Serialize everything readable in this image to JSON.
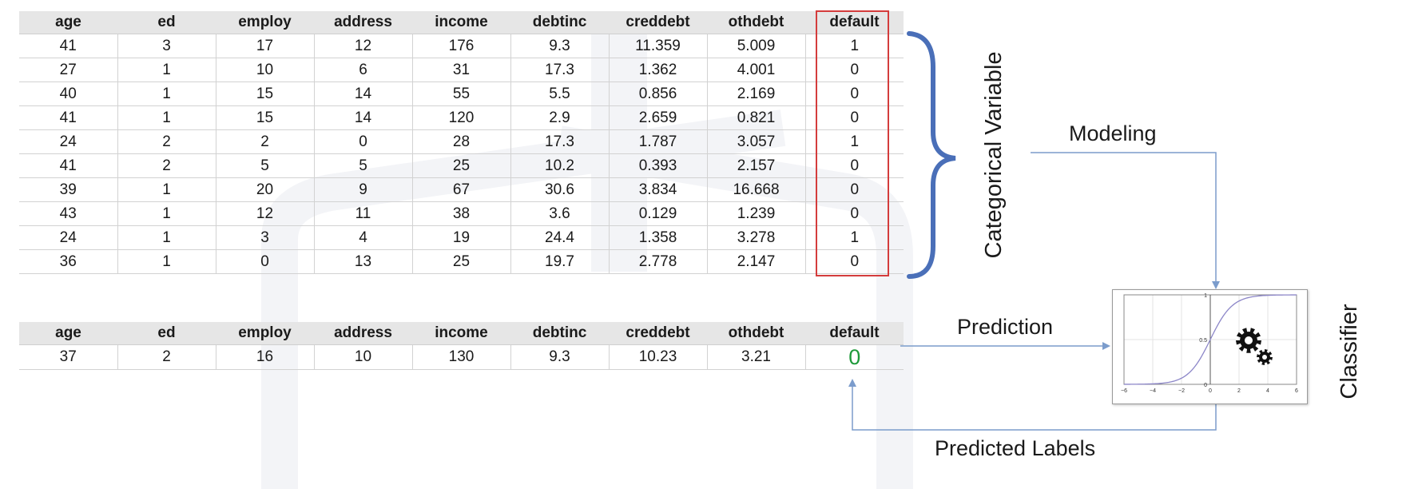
{
  "columns": [
    "age",
    "ed",
    "employ",
    "address",
    "income",
    "debtinc",
    "creddebt",
    "othdebt",
    "default"
  ],
  "training_rows": [
    [
      "41",
      "3",
      "17",
      "12",
      "176",
      "9.3",
      "11.359",
      "5.009",
      "1"
    ],
    [
      "27",
      "1",
      "10",
      "6",
      "31",
      "17.3",
      "1.362",
      "4.001",
      "0"
    ],
    [
      "40",
      "1",
      "15",
      "14",
      "55",
      "5.5",
      "0.856",
      "2.169",
      "0"
    ],
    [
      "41",
      "1",
      "15",
      "14",
      "120",
      "2.9",
      "2.659",
      "0.821",
      "0"
    ],
    [
      "24",
      "2",
      "2",
      "0",
      "28",
      "17.3",
      "1.787",
      "3.057",
      "1"
    ],
    [
      "41",
      "2",
      "5",
      "5",
      "25",
      "10.2",
      "0.393",
      "2.157",
      "0"
    ],
    [
      "39",
      "1",
      "20",
      "9",
      "67",
      "30.6",
      "3.834",
      "16.668",
      "0"
    ],
    [
      "43",
      "1",
      "12",
      "11",
      "38",
      "3.6",
      "0.129",
      "1.239",
      "0"
    ],
    [
      "24",
      "1",
      "3",
      "4",
      "19",
      "24.4",
      "1.358",
      "3.278",
      "1"
    ],
    [
      "36",
      "1",
      "0",
      "13",
      "25",
      "19.7",
      "2.778",
      "2.147",
      "0"
    ]
  ],
  "new_row": [
    "37",
    "2",
    "16",
    "10",
    "130",
    "9.3",
    "10.23",
    "3.21",
    "0"
  ],
  "labels": {
    "categorical_variable": "Categorical Variable",
    "modeling": "Modeling",
    "prediction": "Prediction",
    "predicted_labels": "Predicted Labels",
    "classifier": "Classifier"
  },
  "classifier_plot": {
    "x_ticks": [
      "−6",
      "−4",
      "−2",
      "0",
      "2",
      "4",
      "6"
    ],
    "y_ticks": [
      "0",
      "0.5",
      "1"
    ]
  },
  "colors": {
    "highlight_box": "#d43c3c",
    "brace": "#4a6fb8",
    "arrows": "#7b9ccc",
    "predicted_value": "#1e9a3a",
    "sigmoid": "#8c86c8"
  }
}
